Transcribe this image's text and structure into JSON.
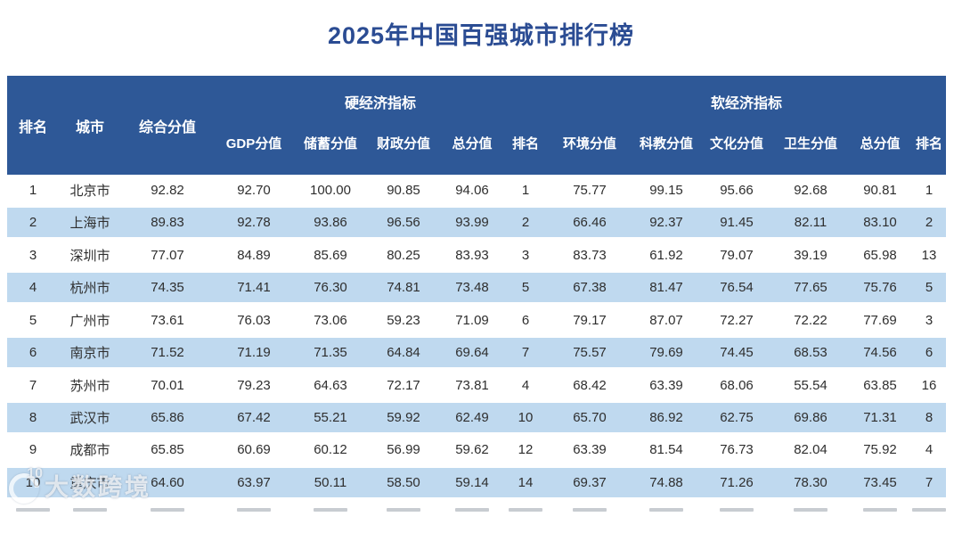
{
  "title": "2025年中国百强城市排行榜",
  "colors": {
    "header_bg": "#2E5897",
    "band_bg": "#BFD9EF",
    "title_text": "#2B4C93"
  },
  "table": {
    "header": {
      "rank": "排名",
      "city": "城市",
      "composite": "综合分值",
      "hard_group": "硬经济指标",
      "soft_group": "软经济指标",
      "hard_cols": [
        "GDP分值",
        "储蓄分值",
        "财政分值",
        "总分值",
        "排名"
      ],
      "soft_cols": [
        "环境分值",
        "科教分值",
        "文化分值",
        "卫生分值",
        "总分值",
        "排名"
      ]
    },
    "rows": [
      {
        "rank": "1",
        "city": "北京市",
        "composite": "92.82",
        "hard": [
          "92.70",
          "100.00",
          "90.85",
          "94.06",
          "1"
        ],
        "soft": [
          "75.77",
          "99.15",
          "95.66",
          "92.68",
          "90.81",
          "1"
        ]
      },
      {
        "rank": "2",
        "city": "上海市",
        "composite": "89.83",
        "hard": [
          "92.78",
          "93.86",
          "96.56",
          "93.99",
          "2"
        ],
        "soft": [
          "66.46",
          "92.37",
          "91.45",
          "82.11",
          "83.10",
          "2"
        ]
      },
      {
        "rank": "3",
        "city": "深圳市",
        "composite": "77.07",
        "hard": [
          "84.89",
          "85.69",
          "80.25",
          "83.93",
          "3"
        ],
        "soft": [
          "83.73",
          "61.92",
          "79.07",
          "39.19",
          "65.98",
          "13"
        ]
      },
      {
        "rank": "4",
        "city": "杭州市",
        "composite": "74.35",
        "hard": [
          "71.41",
          "76.30",
          "74.81",
          "73.48",
          "5"
        ],
        "soft": [
          "67.38",
          "81.47",
          "76.54",
          "77.65",
          "75.76",
          "5"
        ]
      },
      {
        "rank": "5",
        "city": "广州市",
        "composite": "73.61",
        "hard": [
          "76.03",
          "73.06",
          "59.23",
          "71.09",
          "6"
        ],
        "soft": [
          "79.17",
          "87.07",
          "72.27",
          "72.22",
          "77.69",
          "3"
        ]
      },
      {
        "rank": "6",
        "city": "南京市",
        "composite": "71.52",
        "hard": [
          "71.19",
          "71.35",
          "64.84",
          "69.64",
          "7"
        ],
        "soft": [
          "75.57",
          "79.69",
          "74.45",
          "68.53",
          "74.56",
          "6"
        ]
      },
      {
        "rank": "7",
        "city": "苏州市",
        "composite": "70.01",
        "hard": [
          "79.23",
          "64.63",
          "72.17",
          "73.81",
          "4"
        ],
        "soft": [
          "68.42",
          "63.39",
          "68.06",
          "55.54",
          "63.85",
          "16"
        ]
      },
      {
        "rank": "8",
        "city": "武汉市",
        "composite": "65.86",
        "hard": [
          "67.42",
          "55.21",
          "59.92",
          "62.49",
          "10"
        ],
        "soft": [
          "65.70",
          "86.92",
          "62.75",
          "69.86",
          "71.31",
          "8"
        ]
      },
      {
        "rank": "9",
        "city": "成都市",
        "composite": "65.85",
        "hard": [
          "60.69",
          "60.12",
          "56.99",
          "59.62",
          "12"
        ],
        "soft": [
          "63.39",
          "81.54",
          "76.73",
          "82.04",
          "75.92",
          "4"
        ]
      },
      {
        "rank": "10",
        "city": "重庆市",
        "composite": "64.60",
        "hard": [
          "63.97",
          "50.11",
          "58.50",
          "59.14",
          "14"
        ],
        "soft": [
          "69.37",
          "74.88",
          "71.26",
          "78.30",
          "73.45",
          "7"
        ]
      }
    ],
    "partial_row_visible": true
  },
  "watermark": {
    "logo_text": "10",
    "text": "大数跨境"
  }
}
